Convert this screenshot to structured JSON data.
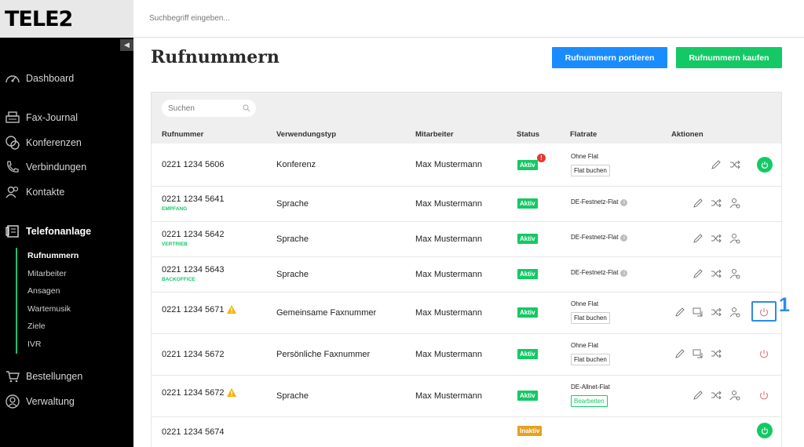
{
  "brand": {
    "logo": "TELE2"
  },
  "topbar": {
    "search_placeholder": "Suchbegriff eingeben..."
  },
  "nav": {
    "items": [
      {
        "label": "Dashboard",
        "icon": "gauge-icon"
      },
      {
        "label": "Fax-Journal",
        "icon": "fax-icon"
      },
      {
        "label": "Konferenzen",
        "icon": "conference-icon"
      },
      {
        "label": "Verbindungen",
        "icon": "phone-icon"
      },
      {
        "label": "Kontakte",
        "icon": "contacts-icon"
      },
      {
        "label": "Telefonanlage",
        "icon": "phone-system-icon"
      },
      {
        "label": "Bestellungen",
        "icon": "cart-icon"
      },
      {
        "label": "Verwaltung",
        "icon": "user-icon"
      }
    ],
    "sub_items": [
      "Rufnummern",
      "Mitarbeiter",
      "Ansagen",
      "Wartemusik",
      "Ziele",
      "IVR"
    ]
  },
  "page": {
    "title": "Rufnummern",
    "btn_port": "Rufnummern portieren",
    "btn_buy": "Rufnummern kaufen"
  },
  "table": {
    "search_placeholder": "Suchen",
    "headers": [
      "Rufnummer",
      "Verwendungstyp",
      "Mitarbeiter",
      "Status",
      "Flatrate",
      "Aktionen"
    ],
    "rows": [
      {
        "number": "0221 1234 5606",
        "tag": "",
        "type": "Konferenz",
        "employee": "Max Mustermann",
        "status": "Aktiv",
        "flat_title": "Ohne Flat",
        "flat_button": "Flat buchen"
      },
      {
        "number": "0221 1234 5641",
        "tag": "EMPFANG",
        "type": "Sprache",
        "employee": "Max Mustermann",
        "status": "Aktiv",
        "flat_title": "DE-Festnetz-Flat",
        "flat_button": ""
      },
      {
        "number": "0221 1234 5642",
        "tag": "VERTRIEB",
        "type": "Sprache",
        "employee": "Max Mustermann",
        "status": "Aktiv",
        "flat_title": "DE-Festnetz-Flat",
        "flat_button": ""
      },
      {
        "number": "0221 1234 5643",
        "tag": "BACKOFFICE",
        "type": "Sprache",
        "employee": "Max Mustermann",
        "status": "Aktiv",
        "flat_title": "DE-Festnetz-Flat",
        "flat_button": ""
      },
      {
        "number": "0221 1234 5671",
        "tag": "",
        "type": "Gemeinsame Faxnummer",
        "employee": "Max Mustermann",
        "status": "Aktiv",
        "flat_title": "Ohne Flat",
        "flat_button": "Flat buchen"
      },
      {
        "number": "0221 1234 5672",
        "tag": "",
        "type": "Persönliche Faxnummer",
        "employee": "Max Mustermann",
        "status": "Aktiv",
        "flat_title": "Ohne Flat",
        "flat_button": "Flat buchen"
      },
      {
        "number": "0221 1234 5672",
        "tag": "",
        "type": "Sprache",
        "employee": "Max Mustermann",
        "status": "Aktiv",
        "flat_title": "DE-Allnet-Flat",
        "flat_button": "Bearbeiten"
      },
      {
        "number": "0221 1234 5674",
        "tag": "",
        "type": "",
        "employee": "",
        "status": "Inaktiv",
        "flat_title": "",
        "flat_button": ""
      }
    ]
  },
  "annotation": {
    "marker": "1"
  },
  "colors": {
    "accent_green": "#14c965",
    "accent_blue": "#1a8cff",
    "inactive": "#e6a023",
    "alert": "#e53935"
  }
}
